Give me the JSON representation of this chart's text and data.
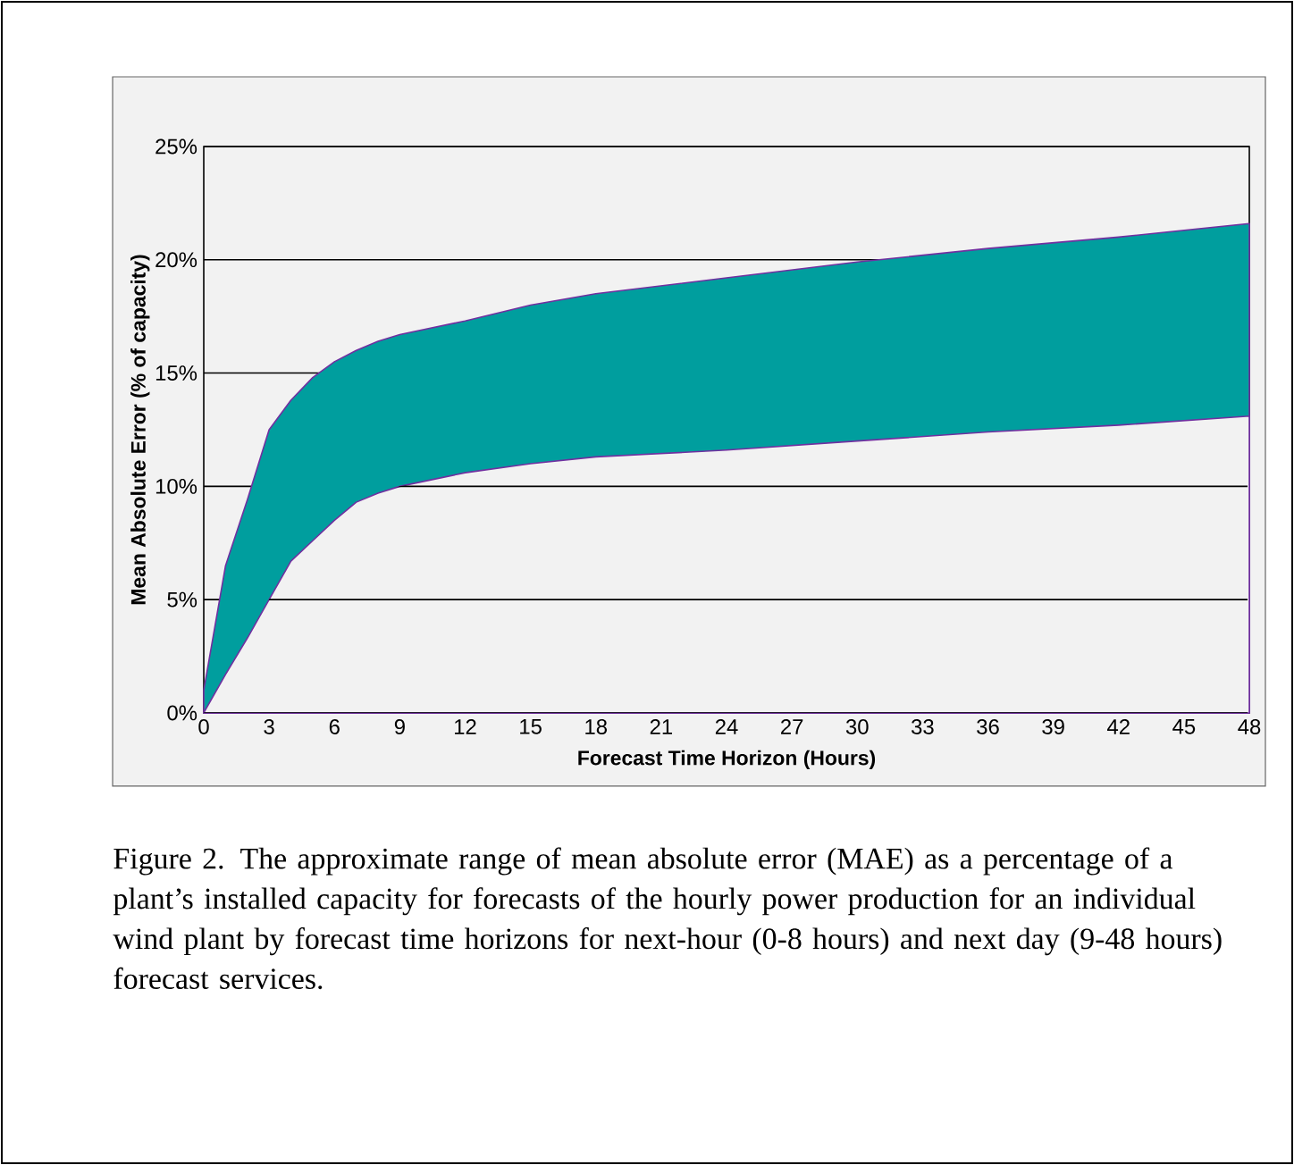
{
  "chart_data": {
    "type": "area",
    "x": [
      0,
      1,
      2,
      3,
      4,
      5,
      6,
      7,
      8,
      9,
      12,
      15,
      18,
      24,
      30,
      36,
      42,
      48
    ],
    "series": [
      {
        "color": "#009e9e",
        "values": [
          1,
          6.5,
          9.4,
          12.5,
          13.8,
          14.8,
          15.5,
          16,
          16.4,
          16.7,
          17.3,
          18,
          18.5,
          19.2,
          19.9,
          20.5,
          21,
          21.6
        ]
      },
      {
        "color": "#f2f2f2",
        "values": [
          0,
          1.7,
          3.3,
          5,
          6.7,
          7.6,
          8.5,
          9.3,
          9.7,
          10,
          10.6,
          11,
          11.3,
          11.6,
          12,
          12.4,
          12.7,
          13.1
        ]
      }
    ],
    "xlabel": "Forecast Time Horizon (Hours)",
    "ylabel": "Mean Absolute Error (% of capacity)",
    "xlim": [
      0,
      48
    ],
    "xticks": [
      0,
      3,
      6,
      9,
      12,
      15,
      18,
      21,
      24,
      27,
      30,
      33,
      36,
      39,
      42,
      45,
      48
    ],
    "ylim": [
      0,
      25
    ],
    "yticks": [
      {
        "value": 0,
        "label": "0%"
      },
      {
        "value": 5,
        "label": "5%"
      },
      {
        "value": 10,
        "label": "10%"
      },
      {
        "value": 15,
        "label": "15%"
      },
      {
        "value": 20,
        "label": "20%"
      },
      {
        "value": 25,
        "label": "25%"
      }
    ],
    "grid": "y",
    "annotations": [
      "Figure 2. The approximate range of mean absolute error (MAE) as a percentage of a plant’s installed capacity for forecasts of the hourly power production for an individual wind plant by forecast time horizons for next-hour (0-8 hours) and next day (9-48 hours) forecast services."
    ]
  }
}
